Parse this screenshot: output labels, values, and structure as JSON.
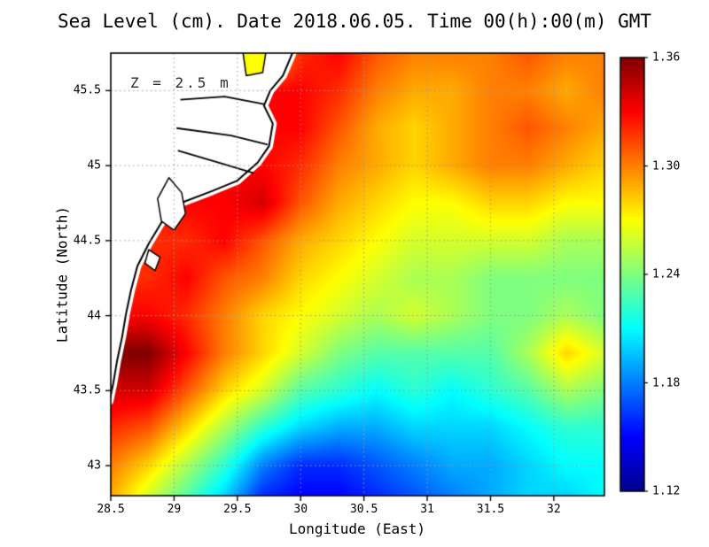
{
  "title": "Sea Level (cm). Date 2018.06.05. Time 00(h):00(m) GMT",
  "colors": {
    "background": "#ffffff",
    "land": "#ffffff",
    "coastline": "#000000",
    "gridline": "#999999",
    "axis": "#000000"
  },
  "chart_data": {
    "type": "heatmap",
    "title": "Sea Level (cm). Date 2018.06.05. Time 00(h):00(m) GMT",
    "annotation": "Z = 2.5 m",
    "xlabel": "Longitude (East)",
    "ylabel": "Latitude (North)",
    "xlim": [
      28.5,
      32.4
    ],
    "ylim": [
      42.8,
      45.75
    ],
    "grid_on": true,
    "x_ticks": [
      {
        "value": 28.5,
        "label": "28.5"
      },
      {
        "value": 29,
        "label": "29"
      },
      {
        "value": 29.5,
        "label": "29.5"
      },
      {
        "value": 30,
        "label": "30"
      },
      {
        "value": 30.5,
        "label": "30.5"
      },
      {
        "value": 31,
        "label": "31"
      },
      {
        "value": 31.5,
        "label": "31.5"
      },
      {
        "value": 32,
        "label": "32"
      }
    ],
    "y_ticks": [
      {
        "value": 45.5,
        "label": "45.5"
      },
      {
        "value": 45,
        "label": "45"
      },
      {
        "value": 44.5,
        "label": "44.5"
      },
      {
        "value": 44,
        "label": "44"
      },
      {
        "value": 43.5,
        "label": "43.5"
      },
      {
        "value": 43,
        "label": "43"
      }
    ],
    "colorbar": {
      "min": 1.12,
      "max": 1.36,
      "colormap": "jet",
      "position": "right",
      "ticks": [
        {
          "value": 1.36,
          "label": "1.36"
        },
        {
          "value": 1.3,
          "label": "1.30"
        },
        {
          "value": 1.24,
          "label": "1.24"
        },
        {
          "value": 1.18,
          "label": "1.18"
        },
        {
          "value": 1.12,
          "label": "1.12"
        }
      ]
    },
    "grid": {
      "lons": [
        28.5,
        28.8,
        29.1,
        29.4,
        29.7,
        30.0,
        30.3,
        30.6,
        30.9,
        31.2,
        31.5,
        31.8,
        32.1,
        32.4
      ],
      "lats": [
        45.75,
        45.5,
        45.25,
        45.0,
        44.75,
        44.5,
        44.25,
        44.0,
        43.75,
        43.5,
        43.25,
        43.0,
        42.8
      ],
      "values": [
        [
          null,
          null,
          null,
          null,
          1.27,
          1.32,
          1.33,
          1.31,
          1.3,
          1.3,
          1.3,
          1.31,
          1.3,
          1.3
        ],
        [
          null,
          null,
          null,
          null,
          null,
          1.33,
          1.32,
          1.3,
          1.29,
          1.29,
          1.3,
          1.3,
          1.29,
          1.3
        ],
        [
          null,
          null,
          null,
          null,
          null,
          1.33,
          1.31,
          1.29,
          1.28,
          1.29,
          1.3,
          1.31,
          1.3,
          1.29
        ],
        [
          null,
          null,
          null,
          null,
          1.33,
          1.32,
          1.3,
          1.29,
          1.28,
          1.29,
          1.3,
          1.3,
          1.29,
          1.28
        ],
        [
          null,
          null,
          null,
          1.33,
          1.34,
          1.31,
          1.29,
          1.28,
          1.27,
          1.27,
          1.28,
          1.28,
          1.27,
          1.27
        ],
        [
          null,
          null,
          1.32,
          1.33,
          1.31,
          1.29,
          1.28,
          1.27,
          1.26,
          1.26,
          1.26,
          1.26,
          1.25,
          1.25
        ],
        [
          null,
          1.32,
          1.33,
          1.31,
          1.3,
          1.28,
          1.27,
          1.26,
          1.25,
          1.25,
          1.24,
          1.24,
          1.24,
          1.24
        ],
        [
          null,
          1.33,
          1.32,
          1.3,
          1.28,
          1.27,
          1.26,
          1.25,
          1.26,
          1.25,
          1.24,
          1.24,
          1.25,
          1.24
        ],
        [
          null,
          1.36,
          1.33,
          1.3,
          1.28,
          1.26,
          1.24,
          1.23,
          1.23,
          1.23,
          1.23,
          1.25,
          1.28,
          1.26
        ],
        [
          null,
          1.34,
          1.31,
          1.28,
          1.26,
          1.23,
          1.22,
          1.21,
          1.22,
          1.21,
          1.22,
          1.23,
          1.25,
          1.24
        ],
        [
          1.32,
          1.31,
          1.28,
          1.25,
          1.22,
          1.2,
          1.19,
          1.19,
          1.2,
          1.2,
          1.2,
          1.21,
          1.22,
          1.22
        ],
        [
          1.3,
          1.28,
          1.25,
          1.22,
          1.18,
          1.16,
          1.16,
          1.17,
          1.18,
          1.19,
          1.19,
          1.2,
          1.21,
          1.21
        ],
        [
          1.29,
          1.26,
          1.23,
          1.2,
          1.16,
          1.15,
          1.15,
          1.16,
          1.17,
          1.18,
          1.19,
          1.2,
          1.2,
          1.21
        ]
      ]
    },
    "land": {
      "coast_polygon": [
        [
          29.95,
          45.78
        ],
        [
          29.86,
          45.6
        ],
        [
          29.76,
          45.5
        ],
        [
          29.71,
          45.4
        ],
        [
          29.78,
          45.28
        ],
        [
          29.75,
          45.13
        ],
        [
          29.66,
          45.02
        ],
        [
          29.5,
          44.9
        ],
        [
          29.3,
          44.83
        ],
        [
          29.05,
          44.75
        ],
        [
          28.9,
          44.62
        ],
        [
          28.8,
          44.48
        ],
        [
          28.71,
          44.33
        ],
        [
          28.66,
          44.17
        ],
        [
          28.62,
          44.01
        ],
        [
          28.59,
          43.86
        ],
        [
          28.55,
          43.7
        ],
        [
          28.52,
          43.55
        ],
        [
          28.49,
          43.43
        ],
        [
          28.4,
          43.4
        ],
        [
          28.4,
          45.78
        ]
      ],
      "lakes": [
        [
          [
            28.96,
            44.92
          ],
          [
            29.06,
            44.82
          ],
          [
            29.09,
            44.68
          ],
          [
            29.0,
            44.57
          ],
          [
            28.9,
            44.63
          ],
          [
            28.87,
            44.78
          ]
        ],
        [
          [
            28.8,
            44.44
          ],
          [
            28.89,
            44.39
          ],
          [
            28.85,
            44.3
          ],
          [
            28.77,
            44.35
          ]
        ]
      ],
      "lagoon": {
        "polygon": [
          [
            29.54,
            45.78
          ],
          [
            29.73,
            45.78
          ],
          [
            29.7,
            45.62
          ],
          [
            29.57,
            45.6
          ]
        ],
        "value": 1.27
      },
      "river_branches": [
        [
          [
            29.05,
            45.44
          ],
          [
            29.4,
            45.46
          ],
          [
            29.71,
            45.41
          ]
        ],
        [
          [
            29.02,
            45.25
          ],
          [
            29.45,
            45.2
          ],
          [
            29.74,
            45.14
          ]
        ],
        [
          [
            29.03,
            45.1
          ],
          [
            29.35,
            45.02
          ],
          [
            29.63,
            44.95
          ]
        ]
      ]
    }
  }
}
